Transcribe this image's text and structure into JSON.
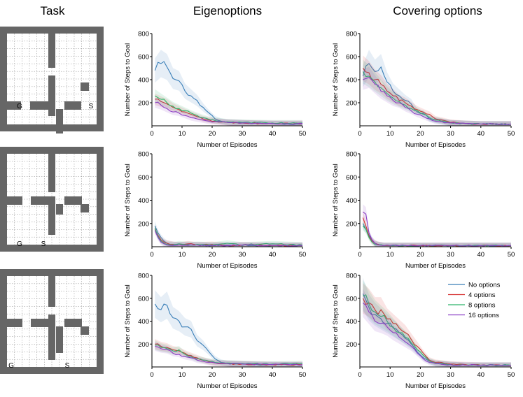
{
  "columns": {
    "task": "Task",
    "eigen": "Eigenoptions",
    "covering": "Covering options"
  },
  "tasks": [
    {
      "goal_label": "G",
      "start_label": "S"
    },
    {
      "goal_label": "G",
      "start_label": "S"
    },
    {
      "goal_label": "G",
      "start_label": "S"
    }
  ],
  "colors": {
    "no_options": "#3a7fb8",
    "opt4": "#d62f2f",
    "opt8": "#2fb56b",
    "opt16": "#8a3fc4",
    "wall": "#666666"
  },
  "legend": [
    "No options",
    "4 options",
    "8 options",
    "16 options"
  ],
  "chart_data": [
    {
      "type": "line",
      "panel": "row1-eigenoptions",
      "title": "",
      "xlabel": "Number of Episodes",
      "ylabel": "Number of Steps to Goal",
      "xlim": [
        0,
        50
      ],
      "ylim": [
        0,
        800
      ],
      "xticks": [
        0,
        10,
        20,
        30,
        40,
        50
      ],
      "yticks": [
        200,
        400,
        600,
        800
      ],
      "series": [
        {
          "name": "No options",
          "x": [
            1,
            3,
            5,
            7,
            9,
            11,
            13,
            15,
            17,
            19,
            21,
            23,
            25,
            30,
            35,
            40,
            45,
            50
          ],
          "y": [
            480,
            540,
            510,
            410,
            390,
            300,
            260,
            220,
            160,
            110,
            60,
            40,
            30,
            25,
            20,
            18,
            15,
            15
          ]
        },
        {
          "name": "4 options",
          "x": [
            1,
            3,
            5,
            7,
            9,
            11,
            13,
            15,
            17,
            19,
            21,
            25,
            30,
            40,
            50
          ],
          "y": [
            230,
            210,
            190,
            160,
            140,
            120,
            100,
            80,
            60,
            50,
            40,
            30,
            25,
            20,
            20
          ]
        },
        {
          "name": "8 options",
          "x": [
            1,
            3,
            5,
            7,
            9,
            11,
            13,
            15,
            17,
            19,
            21,
            25,
            30,
            40,
            50
          ],
          "y": [
            260,
            230,
            200,
            170,
            150,
            130,
            110,
            90,
            70,
            55,
            45,
            35,
            30,
            25,
            25
          ]
        },
        {
          "name": "16 options",
          "x": [
            1,
            3,
            5,
            7,
            9,
            11,
            13,
            15,
            17,
            19,
            21,
            25,
            30,
            40,
            50
          ],
          "y": [
            200,
            180,
            150,
            120,
            110,
            90,
            70,
            60,
            50,
            40,
            35,
            30,
            25,
            20,
            20
          ]
        }
      ]
    },
    {
      "type": "line",
      "panel": "row1-covering",
      "title": "",
      "xlabel": "Number of Episodes",
      "ylabel": "Number of Steps to Goal",
      "xlim": [
        0,
        50
      ],
      "ylim": [
        0,
        800
      ],
      "xticks": [
        0,
        10,
        20,
        30,
        40,
        50
      ],
      "yticks": [
        200,
        400,
        600,
        800
      ],
      "series": [
        {
          "name": "No options",
          "x": [
            1,
            3,
            5,
            7,
            9,
            11,
            13,
            15,
            17,
            19,
            21,
            23,
            25,
            30,
            35,
            40,
            50
          ],
          "y": [
            430,
            540,
            470,
            510,
            380,
            300,
            260,
            220,
            190,
            120,
            110,
            60,
            50,
            25,
            20,
            15,
            15
          ]
        },
        {
          "name": "4 options",
          "x": [
            1,
            3,
            5,
            7,
            9,
            11,
            13,
            15,
            17,
            19,
            21,
            23,
            25,
            30,
            35,
            40,
            50
          ],
          "y": [
            500,
            460,
            400,
            360,
            300,
            260,
            220,
            200,
            170,
            140,
            120,
            100,
            60,
            30,
            20,
            15,
            15
          ]
        },
        {
          "name": "8 options",
          "x": [
            1,
            3,
            5,
            7,
            9,
            11,
            13,
            15,
            17,
            19,
            21,
            23,
            25,
            30,
            35,
            40,
            50
          ],
          "y": [
            470,
            430,
            380,
            330,
            280,
            240,
            210,
            180,
            150,
            130,
            100,
            70,
            50,
            25,
            20,
            15,
            15
          ]
        },
        {
          "name": "16 options",
          "x": [
            1,
            3,
            5,
            7,
            9,
            11,
            13,
            15,
            17,
            19,
            21,
            23,
            25,
            30,
            35,
            40,
            50
          ],
          "y": [
            400,
            420,
            360,
            300,
            260,
            220,
            200,
            160,
            130,
            100,
            80,
            60,
            40,
            25,
            20,
            15,
            15
          ]
        }
      ]
    },
    {
      "type": "line",
      "panel": "row2-eigenoptions",
      "title": "",
      "xlabel": "Number of Episodes",
      "ylabel": "Number of Steps to Goal",
      "xlim": [
        0,
        50
      ],
      "ylim": [
        0,
        800
      ],
      "xticks": [
        0,
        10,
        20,
        30,
        40,
        50
      ],
      "yticks": [
        200,
        400,
        600,
        800
      ],
      "series": [
        {
          "name": "No options",
          "x": [
            1,
            2,
            3,
            4,
            5,
            7,
            9,
            12,
            15,
            20,
            25,
            30,
            40,
            50
          ],
          "y": [
            180,
            120,
            80,
            50,
            30,
            20,
            15,
            20,
            15,
            10,
            15,
            10,
            10,
            10
          ]
        },
        {
          "name": "4 options",
          "x": [
            1,
            2,
            3,
            4,
            5,
            7,
            9,
            12,
            15,
            20,
            25,
            30,
            40,
            50
          ],
          "y": [
            150,
            100,
            60,
            40,
            30,
            20,
            15,
            25,
            15,
            20,
            10,
            15,
            10,
            10
          ]
        },
        {
          "name": "8 options",
          "x": [
            1,
            2,
            3,
            4,
            5,
            7,
            9,
            12,
            15,
            20,
            25,
            30,
            40,
            50
          ],
          "y": [
            160,
            90,
            50,
            30,
            20,
            15,
            25,
            15,
            20,
            15,
            30,
            15,
            25,
            15
          ]
        },
        {
          "name": "16 options",
          "x": [
            1,
            2,
            3,
            4,
            5,
            7,
            9,
            12,
            15,
            20,
            25,
            30,
            40,
            50
          ],
          "y": [
            140,
            80,
            40,
            25,
            15,
            10,
            15,
            10,
            15,
            10,
            10,
            15,
            10,
            10
          ]
        }
      ]
    },
    {
      "type": "line",
      "panel": "row2-covering",
      "title": "",
      "xlabel": "Number of Episodes",
      "ylabel": "Number of Steps to Goal",
      "xlim": [
        0,
        50
      ],
      "ylim": [
        0,
        800
      ],
      "xticks": [
        0,
        10,
        20,
        30,
        40,
        50
      ],
      "yticks": [
        200,
        400,
        600,
        800
      ],
      "series": [
        {
          "name": "No options",
          "x": [
            1,
            2,
            3,
            4,
            5,
            6,
            8,
            10,
            15,
            20,
            30,
            40,
            50
          ],
          "y": [
            200,
            150,
            100,
            60,
            30,
            20,
            10,
            10,
            10,
            10,
            10,
            10,
            10
          ]
        },
        {
          "name": "4 options",
          "x": [
            1,
            2,
            3,
            4,
            5,
            6,
            8,
            10,
            15,
            20,
            30,
            40,
            50
          ],
          "y": [
            250,
            180,
            90,
            50,
            30,
            20,
            10,
            10,
            10,
            10,
            10,
            10,
            10
          ]
        },
        {
          "name": "8 options",
          "x": [
            1,
            2,
            3,
            4,
            5,
            6,
            8,
            10,
            15,
            20,
            30,
            40,
            50
          ],
          "y": [
            180,
            150,
            80,
            40,
            20,
            15,
            10,
            10,
            10,
            10,
            10,
            10,
            10
          ]
        },
        {
          "name": "16 options",
          "x": [
            1,
            2,
            3,
            4,
            5,
            6,
            8,
            10,
            15,
            20,
            30,
            40,
            50
          ],
          "y": [
            300,
            280,
            120,
            60,
            30,
            15,
            10,
            10,
            10,
            10,
            10,
            10,
            10
          ]
        }
      ]
    },
    {
      "type": "line",
      "panel": "row3-eigenoptions",
      "title": "",
      "xlabel": "Number of Episodes",
      "ylabel": "Number of Steps to Goal",
      "xlim": [
        0,
        50
      ],
      "ylim": [
        0,
        800
      ],
      "xticks": [
        0,
        10,
        20,
        30,
        40,
        50
      ],
      "yticks": [
        200,
        400,
        600,
        800
      ],
      "series": [
        {
          "name": "No options",
          "x": [
            1,
            3,
            5,
            7,
            9,
            11,
            13,
            15,
            17,
            19,
            21,
            23,
            25,
            30,
            35,
            40,
            45,
            50
          ],
          "y": [
            550,
            500,
            540,
            430,
            400,
            350,
            330,
            230,
            190,
            130,
            70,
            40,
            30,
            25,
            20,
            20,
            18,
            18
          ]
        },
        {
          "name": "4 options",
          "x": [
            1,
            3,
            5,
            7,
            9,
            11,
            13,
            15,
            17,
            19,
            21,
            25,
            30,
            40,
            50
          ],
          "y": [
            200,
            180,
            170,
            150,
            140,
            120,
            100,
            80,
            60,
            45,
            35,
            30,
            25,
            20,
            20
          ]
        },
        {
          "name": "8 options",
          "x": [
            1,
            3,
            5,
            7,
            9,
            11,
            13,
            15,
            17,
            19,
            21,
            25,
            30,
            40,
            50
          ],
          "y": [
            190,
            170,
            160,
            140,
            150,
            110,
            90,
            70,
            60,
            50,
            40,
            35,
            30,
            25,
            30
          ]
        },
        {
          "name": "16 options",
          "x": [
            1,
            3,
            5,
            7,
            9,
            11,
            13,
            15,
            17,
            19,
            21,
            25,
            30,
            40,
            50
          ],
          "y": [
            180,
            160,
            150,
            120,
            110,
            90,
            80,
            60,
            50,
            40,
            35,
            30,
            25,
            20,
            20
          ]
        }
      ]
    },
    {
      "type": "line",
      "panel": "row3-covering",
      "title": "",
      "xlabel": "Number of Episodes",
      "ylabel": "Number of Steps to Goal",
      "xlim": [
        0,
        50
      ],
      "ylim": [
        0,
        800
      ],
      "xticks": [
        0,
        10,
        20,
        30,
        40,
        50
      ],
      "yticks": [
        200,
        400,
        600,
        800
      ],
      "legend_position": "top-right",
      "series": [
        {
          "name": "No options",
          "x": [
            1,
            3,
            5,
            7,
            9,
            11,
            13,
            15,
            17,
            19,
            21,
            23,
            25,
            30,
            35,
            40,
            50
          ],
          "y": [
            640,
            520,
            460,
            420,
            380,
            340,
            300,
            250,
            200,
            130,
            80,
            50,
            30,
            20,
            15,
            15,
            15
          ]
        },
        {
          "name": "4 options",
          "x": [
            1,
            3,
            5,
            7,
            9,
            11,
            13,
            15,
            17,
            19,
            21,
            23,
            25,
            30,
            35,
            40,
            50
          ],
          "y": [
            600,
            560,
            500,
            500,
            420,
            380,
            340,
            300,
            240,
            180,
            120,
            60,
            40,
            25,
            20,
            15,
            15
          ]
        },
        {
          "name": "8 options",
          "x": [
            1,
            3,
            5,
            7,
            9,
            11,
            13,
            15,
            17,
            19,
            21,
            23,
            25,
            30,
            35,
            40,
            50
          ],
          "y": [
            620,
            550,
            480,
            440,
            400,
            350,
            300,
            260,
            210,
            150,
            100,
            50,
            35,
            20,
            15,
            15,
            15
          ]
        },
        {
          "name": "16 options",
          "x": [
            1,
            3,
            5,
            7,
            9,
            11,
            13,
            15,
            17,
            19,
            21,
            23,
            25,
            30,
            35,
            40,
            50
          ],
          "y": [
            560,
            480,
            400,
            380,
            350,
            300,
            260,
            220,
            180,
            120,
            70,
            40,
            30,
            20,
            15,
            15,
            15
          ]
        }
      ]
    }
  ]
}
